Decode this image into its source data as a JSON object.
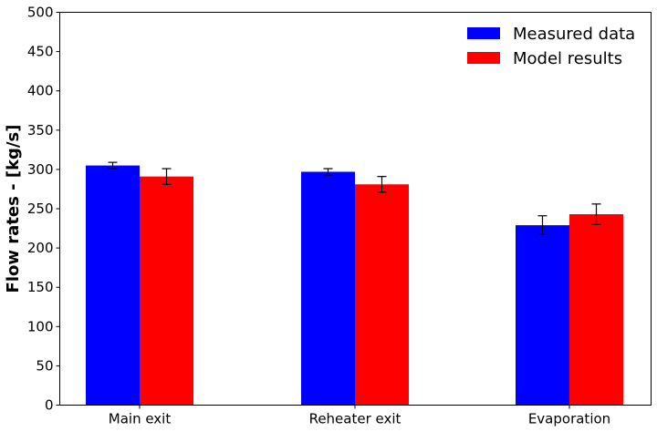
{
  "chart_data": {
    "type": "bar",
    "title": "",
    "xlabel": "",
    "ylabel": "Flow rates - [kg/s]",
    "ylim": [
      0,
      500
    ],
    "yticks": [
      0,
      50,
      100,
      150,
      200,
      250,
      300,
      350,
      400,
      450,
      500
    ],
    "categories": [
      "Main exit",
      "Reheater exit",
      "Evaporation"
    ],
    "series": [
      {
        "name": "Measured data",
        "color": "#0000ff",
        "values": [
          305,
          297,
          229
        ],
        "errors": [
          4,
          4,
          12
        ]
      },
      {
        "name": "Model results",
        "color": "#ff0000",
        "values": [
          291,
          281,
          243
        ],
        "errors": [
          10,
          10,
          13
        ]
      }
    ],
    "legend_position": "top-right",
    "grid": false
  }
}
